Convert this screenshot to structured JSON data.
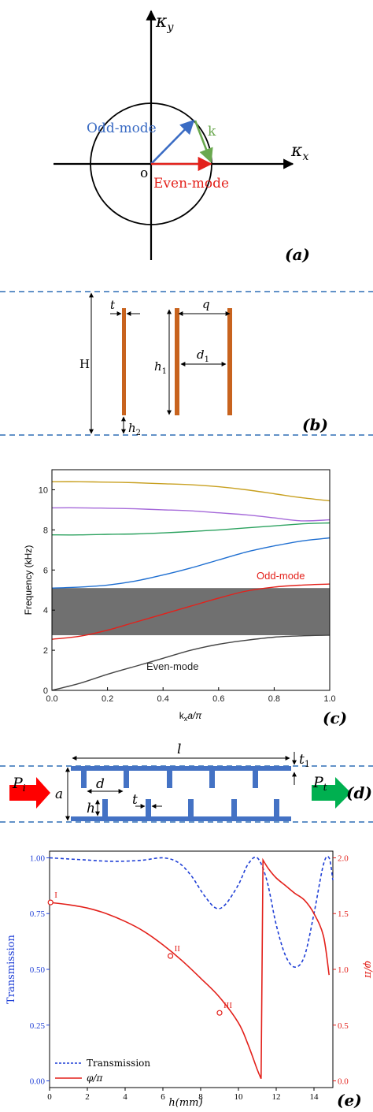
{
  "panel_a": {
    "ky": "κ",
    "ky_sub": "y",
    "kx": "κ",
    "kx_sub": "x",
    "origin": "o",
    "k": "k",
    "odd": "Odd-mode",
    "even": "Even-mode",
    "tag": "(a)",
    "colors": {
      "odd": "#3b6cc4",
      "even": "#e3211b",
      "k": "#6aa84f"
    }
  },
  "panel_b": {
    "t": "t",
    "q": "q",
    "H": "H",
    "h1": "h",
    "h1_sub": "1",
    "d1": "d",
    "d1_sub": "1",
    "h2": "h",
    "h2_sub": "2",
    "tag": "(b)",
    "colors": {
      "plate": "#c8631e",
      "boundary": "#2f6fb5"
    }
  },
  "panel_c": {
    "ylabel": "Frequency (kHz)",
    "xlabel_k": "k",
    "xlabel_sub": "x",
    "xlabel_rest": "a/π",
    "odd_label": "Odd-mode",
    "even_label": "Even-mode",
    "tag": "(c)",
    "xticks": [
      "0.0",
      "0.2",
      "0.4",
      "0.6",
      "0.8",
      "1.0"
    ],
    "yticks": [
      "0",
      "2",
      "4",
      "6",
      "8",
      "10"
    ]
  },
  "panel_d": {
    "l": "l",
    "t1": "t",
    "t1_sub": "1",
    "Pi": "P",
    "Pi_sub": "i",
    "Pt": "P",
    "Pt_sub": "t",
    "a": "a",
    "d": "d",
    "h": "h",
    "t": "t",
    "tag": "(d)",
    "colors": {
      "structure": "#4472c4",
      "in_arrow": "#ff0000",
      "out_arrow": "#00b050"
    }
  },
  "panel_e": {
    "ylabel_left": "Transmission",
    "ylabel_right": "φ/π",
    "xlabel": "h(mm)",
    "legend_trans": "Transmission",
    "legend_phase": "φ/π",
    "points": [
      "I",
      "II",
      "III"
    ],
    "tag": "(e)",
    "left_ticks": [
      "0.00",
      "0.25",
      "0.50",
      "0.75",
      "1.00"
    ],
    "right_ticks": [
      "0.0",
      "0.5",
      "1.0",
      "1.5",
      "2.0"
    ],
    "xticks": [
      "0",
      "2",
      "4",
      "6",
      "8",
      "10",
      "12",
      "14"
    ]
  },
  "chart_data": [
    {
      "type": "line",
      "xlabel": "kxa/π",
      "ylabel": "Frequency (kHz)",
      "xlim": [
        0,
        1
      ],
      "ylim": [
        0,
        11
      ],
      "bandgap": [
        2.75,
        5.1
      ],
      "x": [
        0,
        0.1,
        0.2,
        0.3,
        0.4,
        0.5,
        0.6,
        0.7,
        0.8,
        0.9,
        1.0
      ],
      "series": [
        {
          "values": [
            0,
            0.35,
            0.8,
            1.2,
            1.6,
            2.0,
            2.3,
            2.5,
            2.65,
            2.72,
            2.75
          ],
          "color": "#444444"
        },
        {
          "values": [
            2.55,
            2.7,
            3.0,
            3.4,
            3.8,
            4.2,
            4.6,
            4.95,
            5.15,
            5.25,
            5.3
          ],
          "color": "#e3211b"
        },
        {
          "values": [
            5.1,
            5.15,
            5.25,
            5.45,
            5.75,
            6.1,
            6.5,
            6.9,
            7.2,
            7.45,
            7.6
          ],
          "color": "#1f6fd1"
        },
        {
          "values": [
            7.75,
            7.75,
            7.78,
            7.8,
            7.85,
            7.92,
            8.0,
            8.1,
            8.2,
            8.3,
            8.35
          ],
          "color": "#2ca25f"
        },
        {
          "values": [
            9.1,
            9.1,
            9.08,
            9.05,
            9.0,
            8.95,
            8.85,
            8.75,
            8.6,
            8.45,
            8.5
          ],
          "color": "#a569d9"
        },
        {
          "values": [
            10.4,
            10.4,
            10.38,
            10.35,
            10.3,
            10.25,
            10.15,
            10.0,
            9.8,
            9.6,
            9.45
          ],
          "color": "#c8a020"
        }
      ]
    },
    {
      "type": "line",
      "xlabel": "h(mm)",
      "ylabel": "Transmission",
      "ylabel_right": "φ/π",
      "xlim": [
        0,
        15
      ],
      "ylim": [
        -0.03,
        1.03
      ],
      "ylim_right": [
        -0.06,
        2.06
      ],
      "series": [
        {
          "name": "Transmission",
          "axis": "left",
          "style": "dashed",
          "color": "#1f3fd6",
          "x": [
            0,
            1,
            2,
            3,
            4,
            5,
            6,
            6.8,
            7.5,
            8.2,
            8.8,
            9.3,
            10.0,
            10.5,
            11.0,
            11.5,
            12.0,
            12.5,
            13.0,
            13.5,
            14.0,
            14.5,
            14.8,
            15.0
          ],
          "values": [
            1.0,
            0.995,
            0.99,
            0.985,
            0.985,
            0.99,
            1.0,
            0.98,
            0.92,
            0.83,
            0.775,
            0.79,
            0.88,
            0.97,
            1.0,
            0.9,
            0.7,
            0.56,
            0.51,
            0.56,
            0.75,
            0.97,
            1.0,
            0.9
          ]
        },
        {
          "name": "φ/π",
          "axis": "right",
          "style": "solid",
          "color": "#e3211b",
          "x": [
            0,
            1,
            2,
            3,
            4,
            5,
            6,
            7,
            8,
            9,
            10,
            10.5,
            11.0,
            11.2,
            11.3,
            11.6,
            12.0,
            12.5,
            13.0,
            13.5,
            14.0,
            14.5,
            14.8
          ],
          "values": [
            1.6,
            1.58,
            1.55,
            1.5,
            1.43,
            1.34,
            1.22,
            1.08,
            0.92,
            0.75,
            0.52,
            0.33,
            0.1,
            0.02,
            1.98,
            1.9,
            1.82,
            1.75,
            1.68,
            1.62,
            1.5,
            1.3,
            0.95
          ]
        }
      ],
      "markers": [
        {
          "label": "I",
          "x": 0.05,
          "y_right": 1.6
        },
        {
          "label": "II",
          "x": 6.4,
          "y_right": 1.12
        },
        {
          "label": "III",
          "x": 9.0,
          "y_right": 0.61
        }
      ],
      "left_ticks": [
        0.0,
        0.25,
        0.5,
        0.75,
        1.0
      ],
      "right_ticks": [
        0.0,
        0.5,
        1.0,
        1.5,
        2.0
      ]
    }
  ]
}
